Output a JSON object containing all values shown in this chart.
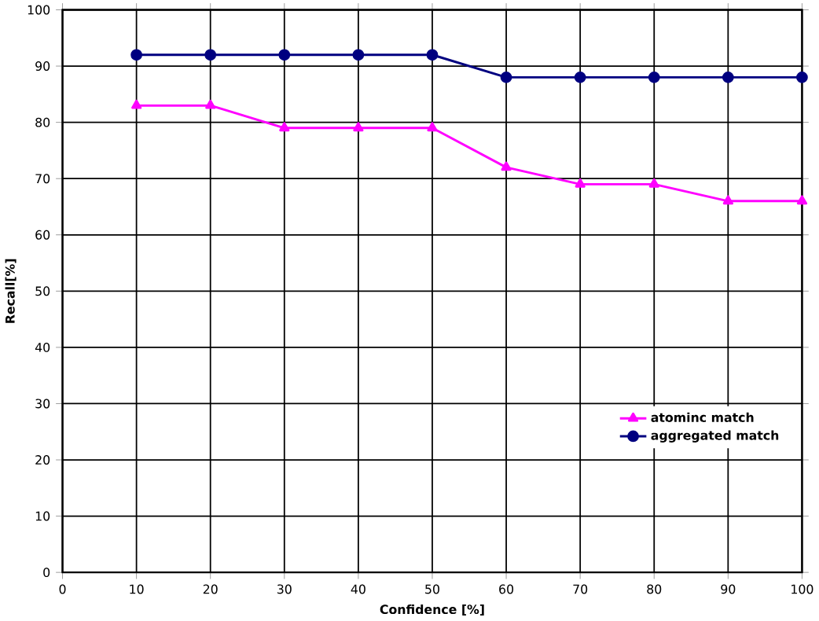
{
  "chart_data": {
    "type": "line",
    "xlabel": "Confidence [%]",
    "ylabel": "Recall[%]",
    "x": [
      10,
      20,
      30,
      40,
      50,
      60,
      70,
      80,
      90,
      100
    ],
    "series": [
      {
        "name": "atominc match",
        "color": "#ff00ff",
        "marker": "triangle",
        "values": [
          83,
          83,
          79,
          79,
          79,
          72,
          69,
          69,
          66,
          66
        ]
      },
      {
        "name": "aggregated match",
        "color": "#000080",
        "marker": "circle",
        "values": [
          92,
          92,
          92,
          92,
          92,
          88,
          88,
          88,
          88,
          88
        ]
      }
    ],
    "xlim": [
      0,
      100
    ],
    "ylim": [
      0,
      100
    ],
    "xticks": [
      0,
      10,
      20,
      30,
      40,
      50,
      60,
      70,
      80,
      90,
      100
    ],
    "yticks": [
      0,
      10,
      20,
      30,
      40,
      50,
      60,
      70,
      80,
      90,
      100
    ],
    "grid": true,
    "legend": "bottom right",
    "line_style": "solid"
  }
}
